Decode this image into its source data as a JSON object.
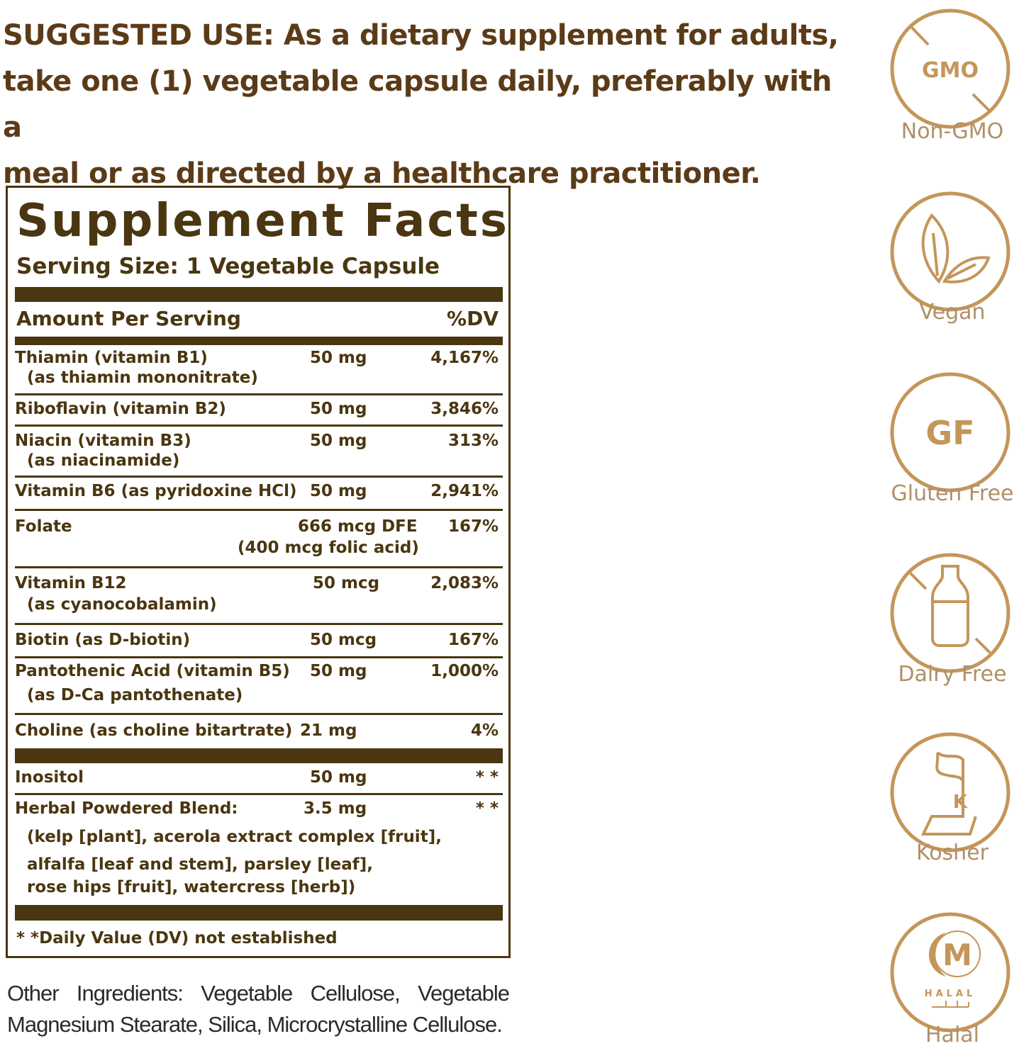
{
  "suggested_use": {
    "lines": [
      "SUGGESTED USE: As a dietary supplement for adults,",
      "take one (1) vegetable capsule daily, preferably with a",
      "meal or as directed by a healthcare practitioner."
    ]
  },
  "facts": {
    "title": "Supplement Facts",
    "serving_size": "Serving Size: 1 Vegetable Capsule",
    "amount_header": "Amount Per Serving",
    "dv_header": "%DV",
    "rows": [
      {
        "name": "Thiamin (vitamin B1)",
        "sub": "(as thiamin mononitrate)",
        "amount": "50 mg",
        "dv": "4,167%"
      },
      {
        "name": "Riboflavin (vitamin B2)",
        "sub": "",
        "amount": "50 mg",
        "dv": "3,846%"
      },
      {
        "name": "Niacin (vitamin B3)",
        "sub": "(as niacinamide)",
        "amount": "50 mg",
        "dv": "313%"
      },
      {
        "name": "Vitamin B6 (as pyridoxine HCl)",
        "sub": "",
        "amount": "50 mg",
        "dv": "2,941%"
      },
      {
        "name": "Folate",
        "sub": "",
        "amount": "666 mcg DFE",
        "amount_sub": "(400 mcg folic acid)",
        "dv": "167%"
      },
      {
        "name": "Vitamin B12",
        "sub": "(as cyanocobalamin)",
        "amount": "50 mcg",
        "dv": "2,083%"
      },
      {
        "name": "Biotin (as D-biotin)",
        "sub": "",
        "amount": "50 mcg",
        "dv": "167%"
      },
      {
        "name": "Pantothenic Acid (vitamin B5)",
        "sub": "(as D-Ca pantothenate)",
        "amount": "50 mg",
        "dv": "1,000%"
      },
      {
        "name": "Choline (as choline bitartrate)",
        "sub": "",
        "amount": "21 mg",
        "dv": "4%"
      },
      {
        "name": "Inositol",
        "sub": "",
        "amount": "50 mg",
        "dv": "* *"
      },
      {
        "name": "Herbal Powdered Blend:",
        "sub": "",
        "amount": "3.5 mg",
        "dv": "* *"
      }
    ],
    "blend_lines": [
      "(kelp [plant], acerola extract complex [fruit],",
      "alfalfa [leaf and stem], parsley [leaf],",
      "rose hips [fruit], watercress [herb])"
    ],
    "footnote": "* *Daily Value (DV) not established"
  },
  "other_ingredients": "Other Ingredients: Vegetable Cellulose, Vegetable Magnesium Stearate, Silica, Microcrystalline Cellulose.",
  "badges": [
    {
      "icon": "non-gmo-icon",
      "label": "Non-GMO",
      "text": "GMO"
    },
    {
      "icon": "vegan-leaf-icon",
      "label": "Vegan"
    },
    {
      "icon": "gluten-free-icon",
      "label": "Gluten Free",
      "text": "GF"
    },
    {
      "icon": "dairy-free-bottle-icon",
      "label": "Dairy Free"
    },
    {
      "icon": "kosher-icon",
      "label": "Kosher",
      "text": "K"
    },
    {
      "icon": "halal-icon",
      "label": "Halal",
      "text": "M",
      "subtext": "HALAL"
    }
  ],
  "colors": {
    "text_brown": "#5b3b17",
    "facts_brown": "#4a3610",
    "badge_gold": "#c4965a",
    "badge_label": "#b09068"
  }
}
